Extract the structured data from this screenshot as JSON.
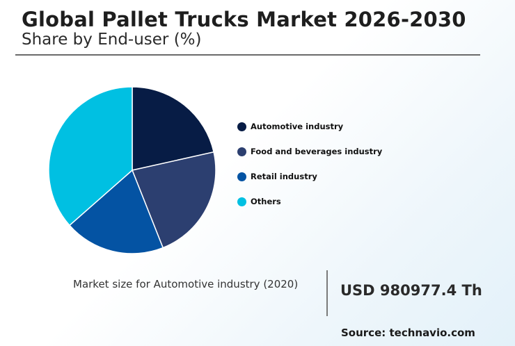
{
  "header": {
    "title": "Global Pallet Trucks Market 2026-2030",
    "subtitle": "Share by End-user (%)"
  },
  "chart_data": {
    "type": "pie",
    "title": "Global Pallet Trucks Market 2026-2030",
    "subtitle": "Share by End-user (%)",
    "legend_position": "right",
    "categories": [
      "Automotive industry",
      "Food and beverages industry",
      "Retail industry",
      "Others"
    ],
    "values": [
      21.5,
      22.5,
      19.5,
      36.5
    ],
    "colors": [
      "#071c45",
      "#2c3f70",
      "#0453a3",
      "#00c0e2"
    ]
  },
  "kpi": {
    "label": "Market size for Automotive industry (2020)",
    "value": "USD 980977.4 Th"
  },
  "source": "Source: technavio.com"
}
